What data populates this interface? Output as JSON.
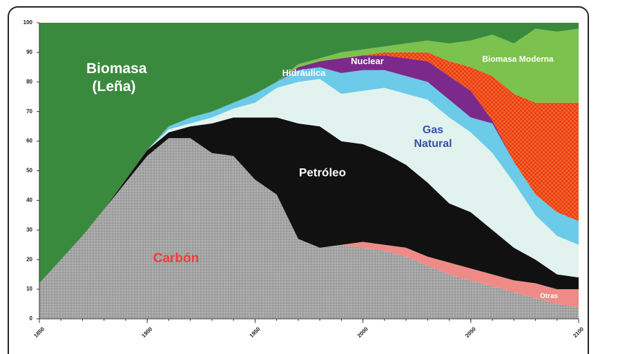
{
  "chart_data": {
    "type": "stacked_area",
    "x": [
      1850,
      1860,
      1870,
      1880,
      1890,
      1900,
      1910,
      1920,
      1930,
      1940,
      1950,
      1960,
      1970,
      1980,
      1990,
      2000,
      2010,
      2020,
      2030,
      2040,
      2050,
      2060,
      2070,
      2080,
      2090,
      2100
    ],
    "xlim": [
      1850,
      2100
    ],
    "xticks": [
      1850,
      1900,
      1950,
      2000,
      2050,
      2100
    ],
    "ylim": [
      0,
      100
    ],
    "yticks": [
      0,
      10,
      20,
      30,
      40,
      50,
      60,
      70,
      80,
      90,
      100
    ],
    "series": [
      {
        "name": "Carbón",
        "color": "#a4a4a4",
        "label_color": "#e8413a",
        "values": [
          12,
          20,
          28,
          37,
          46,
          55,
          61,
          61,
          56,
          55,
          47,
          42,
          27,
          24,
          25,
          24,
          23,
          21,
          18,
          15,
          13,
          11,
          9,
          7,
          5,
          4
        ]
      },
      {
        "name": "Otras",
        "color": "#f08a86",
        "label_color": "#ffffff",
        "values": [
          0,
          0,
          0,
          0,
          0,
          0,
          0,
          0,
          0,
          0,
          0,
          0,
          0,
          0,
          0,
          2,
          2,
          3,
          3,
          4,
          4,
          4,
          4,
          5,
          5,
          6
        ]
      },
      {
        "name": "Petróleo",
        "color": "#111111",
        "label_color": "#ffffff",
        "values": [
          0,
          0,
          0,
          0,
          1,
          2,
          2,
          4,
          10,
          13,
          21,
          26,
          39,
          41,
          35,
          33,
          31,
          28,
          25,
          20,
          19,
          15,
          11,
          8,
          5,
          4
        ]
      },
      {
        "name": "Gas Natural",
        "color": "#e2f3ef",
        "label_color": "#3a4fa8",
        "values": [
          0,
          0,
          0,
          0,
          0,
          0,
          1,
          1,
          2,
          3,
          5,
          10,
          14,
          16,
          16,
          18,
          22,
          24,
          28,
          29,
          27,
          26,
          22,
          15,
          13,
          11
        ]
      },
      {
        "name": "Hidráulica",
        "color": "#6ccbe8",
        "label_color": "#ffffff",
        "values": [
          0,
          0,
          0,
          0,
          0,
          0,
          1,
          2,
          2,
          2,
          3,
          2,
          4,
          4,
          7,
          7,
          6,
          6,
          6,
          6,
          5,
          10,
          7,
          7,
          8,
          8
        ]
      },
      {
        "name": "Nuclear",
        "color": "#7b2a8c",
        "label_color": "#ffffff",
        "values": [
          0,
          0,
          0,
          0,
          0,
          0,
          0,
          0,
          0,
          0,
          0,
          0,
          1,
          2,
          5,
          5,
          5,
          6,
          7,
          8,
          9,
          1,
          0,
          0,
          0,
          0
        ]
      },
      {
        "color": "#f26522",
        "values": [
          0,
          0,
          0,
          0,
          0,
          0,
          0,
          0,
          0,
          0,
          0,
          0,
          0,
          0,
          0,
          0,
          1,
          2,
          3,
          5,
          8,
          15,
          23,
          31,
          37,
          40
        ]
      },
      {
        "name": "Biomasa Moderna",
        "color": "#7cc24e",
        "label_color": "#ffffff",
        "values": [
          0,
          0,
          0,
          0,
          0,
          0,
          0,
          0,
          0,
          0,
          0,
          0,
          1,
          1,
          2,
          2,
          2,
          3,
          4,
          6,
          9,
          14,
          17,
          25,
          24,
          25
        ]
      },
      {
        "name": "Biomasa (Leña)",
        "color": "#3a8a3e",
        "label_color": "#ffffff",
        "values": [
          88,
          80,
          72,
          63,
          53,
          43,
          35,
          32,
          30,
          27,
          24,
          20,
          14,
          12,
          10,
          9,
          8,
          7,
          6,
          7,
          6,
          4,
          7,
          2,
          3,
          2
        ]
      }
    ]
  }
}
